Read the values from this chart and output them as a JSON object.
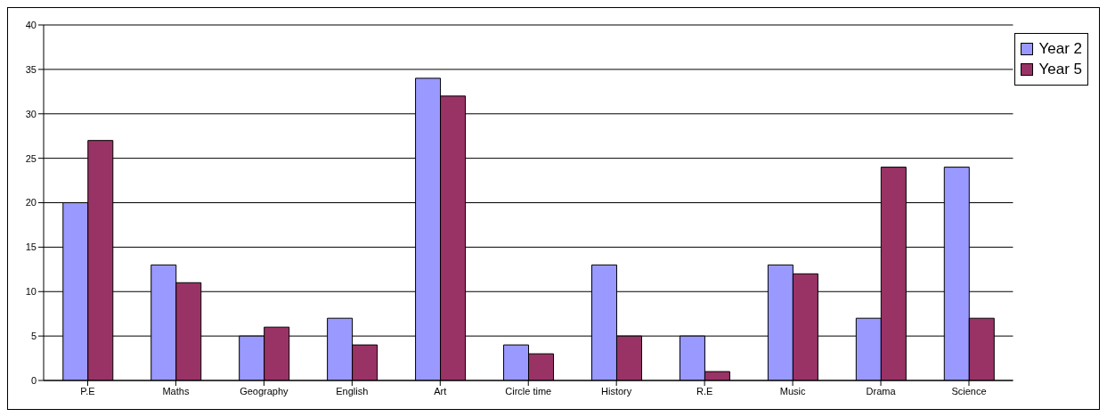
{
  "chart_data": {
    "type": "bar",
    "categories": [
      "P.E",
      "Maths",
      "Geography",
      "English",
      "Art",
      "Circle time",
      "History",
      "R.E",
      "Music",
      "Drama",
      "Science"
    ],
    "series": [
      {
        "name": "Year 2",
        "color": "#9999ff",
        "values": [
          20,
          13,
          5,
          7,
          34,
          4,
          13,
          5,
          13,
          7,
          24
        ]
      },
      {
        "name": "Year 5",
        "color": "#993366",
        "values": [
          27,
          11,
          6,
          4,
          32,
          3,
          5,
          1,
          12,
          24,
          7
        ]
      }
    ],
    "ylim": [
      0,
      40
    ],
    "yticks": [
      0,
      5,
      10,
      15,
      20,
      25,
      30,
      35,
      40
    ],
    "grid": "y",
    "legend": "top right"
  }
}
